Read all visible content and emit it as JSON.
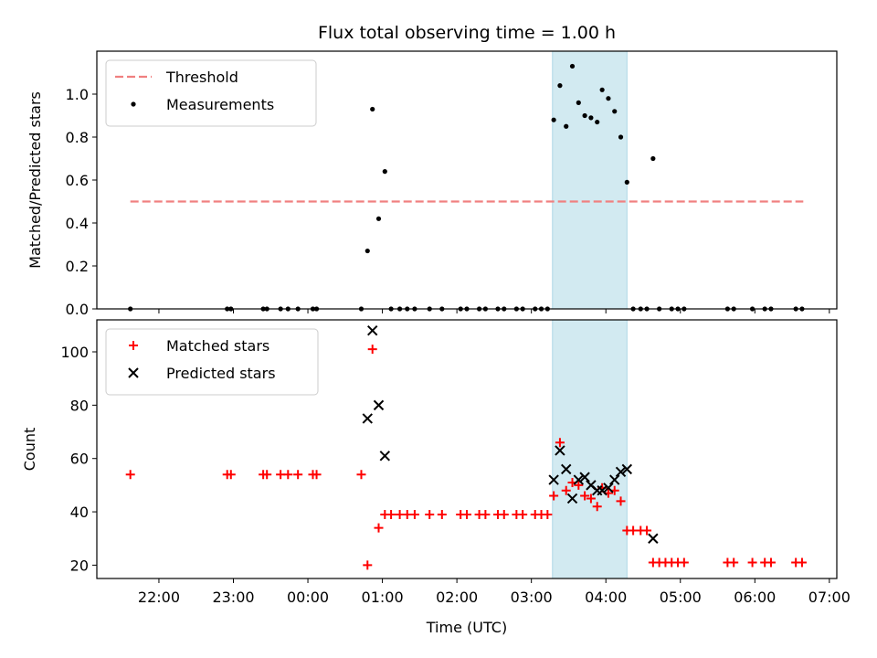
{
  "chart_data": [
    {
      "type": "scatter",
      "title": "Flux total observing time = 1.00 h",
      "ylabel": "Matched/Predicted stars",
      "xlabel": "",
      "ylim": [
        0,
        1.2
      ],
      "yticks": [
        0.0,
        0.2,
        0.4,
        0.6,
        0.8,
        1.0
      ],
      "ytick_labels": [
        "0.0",
        "0.2",
        "0.4",
        "0.6",
        "0.8",
        "1.0"
      ],
      "grid": false,
      "legend_position": "top-left",
      "highlight_span": [
        "03:17",
        "04:17"
      ],
      "highlight_color": "#add8e6",
      "threshold": {
        "name": "Threshold",
        "value": 0.5,
        "x_range": [
          "21:37",
          "06:39"
        ],
        "color": "#f08080",
        "style": "dashed"
      },
      "series": [
        {
          "name": "Measurements",
          "color": "#000000",
          "marker": "dot",
          "points": [
            [
              "21:37",
              0.0
            ],
            [
              "22:55",
              0.0
            ],
            [
              "22:58",
              0.0
            ],
            [
              "23:24",
              0.0
            ],
            [
              "23:27",
              0.0
            ],
            [
              "23:38",
              0.0
            ],
            [
              "23:44",
              0.0
            ],
            [
              "23:52",
              0.0
            ],
            [
              "00:04",
              0.0
            ],
            [
              "00:07",
              0.0
            ],
            [
              "00:43",
              0.0
            ],
            [
              "00:48",
              0.27
            ],
            [
              "00:52",
              0.93
            ],
            [
              "00:57",
              0.42
            ],
            [
              "01:02",
              0.64
            ],
            [
              "01:07",
              0.0
            ],
            [
              "01:14",
              0.0
            ],
            [
              "01:20",
              0.0
            ],
            [
              "01:26",
              0.0
            ],
            [
              "01:38",
              0.0
            ],
            [
              "01:48",
              0.0
            ],
            [
              "02:03",
              0.0
            ],
            [
              "02:08",
              0.0
            ],
            [
              "02:18",
              0.0
            ],
            [
              "02:23",
              0.0
            ],
            [
              "02:33",
              0.0
            ],
            [
              "02:38",
              0.0
            ],
            [
              "02:48",
              0.0
            ],
            [
              "02:53",
              0.0
            ],
            [
              "03:03",
              0.0
            ],
            [
              "03:08",
              0.0
            ],
            [
              "03:13",
              0.0
            ],
            [
              "03:18",
              0.88
            ],
            [
              "03:23",
              1.04
            ],
            [
              "03:28",
              0.85
            ],
            [
              "03:33",
              1.13
            ],
            [
              "03:38",
              0.96
            ],
            [
              "03:43",
              0.9
            ],
            [
              "03:48",
              0.89
            ],
            [
              "03:53",
              0.87
            ],
            [
              "03:57",
              1.02
            ],
            [
              "04:02",
              0.98
            ],
            [
              "04:07",
              0.92
            ],
            [
              "04:12",
              0.8
            ],
            [
              "04:17",
              0.59
            ],
            [
              "04:22",
              0.0
            ],
            [
              "04:28",
              0.0
            ],
            [
              "04:33",
              0.0
            ],
            [
              "04:38",
              0.7
            ],
            [
              "04:43",
              0.0
            ],
            [
              "04:53",
              0.0
            ],
            [
              "04:58",
              0.0
            ],
            [
              "05:03",
              0.0
            ],
            [
              "05:38",
              0.0
            ],
            [
              "05:43",
              0.0
            ],
            [
              "05:58",
              0.0
            ],
            [
              "06:08",
              0.0
            ],
            [
              "06:13",
              0.0
            ],
            [
              "06:33",
              0.0
            ],
            [
              "06:38",
              0.0
            ]
          ]
        }
      ]
    },
    {
      "type": "scatter",
      "title": "",
      "ylabel": "Count",
      "xlabel": "Time (UTC)",
      "ylim": [
        15,
        112
      ],
      "yticks": [
        20,
        40,
        60,
        80,
        100
      ],
      "ytick_labels": [
        "20",
        "40",
        "60",
        "80",
        "100"
      ],
      "x_range": [
        "21:10",
        "07:06"
      ],
      "xticks": [
        "22:00",
        "23:00",
        "00:00",
        "01:00",
        "02:00",
        "03:00",
        "04:00",
        "05:00",
        "06:00",
        "07:00"
      ],
      "xtick_labels": [
        "22:00",
        "23:00",
        "00:00",
        "01:00",
        "02:00",
        "03:00",
        "04:00",
        "05:00",
        "06:00",
        "07:00"
      ],
      "grid": false,
      "legend_position": "top-left",
      "highlight_span": [
        "03:17",
        "04:17"
      ],
      "highlight_color": "#add8e6",
      "series": [
        {
          "name": "Matched stars",
          "color": "#ff0000",
          "marker": "plus",
          "points": [
            [
              "21:37",
              54
            ],
            [
              "22:55",
              54
            ],
            [
              "22:58",
              54
            ],
            [
              "23:24",
              54
            ],
            [
              "23:27",
              54
            ],
            [
              "23:38",
              54
            ],
            [
              "23:44",
              54
            ],
            [
              "23:52",
              54
            ],
            [
              "00:04",
              54
            ],
            [
              "00:07",
              54
            ],
            [
              "00:43",
              54
            ],
            [
              "00:48",
              20
            ],
            [
              "00:52",
              101
            ],
            [
              "00:57",
              34
            ],
            [
              "01:02",
              39
            ],
            [
              "01:07",
              39
            ],
            [
              "01:14",
              39
            ],
            [
              "01:20",
              39
            ],
            [
              "01:26",
              39
            ],
            [
              "01:38",
              39
            ],
            [
              "01:48",
              39
            ],
            [
              "02:03",
              39
            ],
            [
              "02:08",
              39
            ],
            [
              "02:18",
              39
            ],
            [
              "02:23",
              39
            ],
            [
              "02:33",
              39
            ],
            [
              "02:38",
              39
            ],
            [
              "02:48",
              39
            ],
            [
              "02:53",
              39
            ],
            [
              "03:03",
              39
            ],
            [
              "03:08",
              39
            ],
            [
              "03:13",
              39
            ],
            [
              "03:18",
              46
            ],
            [
              "03:23",
              66
            ],
            [
              "03:28",
              48
            ],
            [
              "03:33",
              51
            ],
            [
              "03:38",
              50
            ],
            [
              "03:43",
              46
            ],
            [
              "03:48",
              45
            ],
            [
              "03:53",
              42
            ],
            [
              "03:57",
              49
            ],
            [
              "04:02",
              47
            ],
            [
              "04:07",
              48
            ],
            [
              "04:12",
              44
            ],
            [
              "04:17",
              33
            ],
            [
              "04:22",
              33
            ],
            [
              "04:28",
              33
            ],
            [
              "04:33",
              33
            ],
            [
              "04:38",
              21
            ],
            [
              "04:43",
              21
            ],
            [
              "04:48",
              21
            ],
            [
              "04:53",
              21
            ],
            [
              "04:58",
              21
            ],
            [
              "05:03",
              21
            ],
            [
              "05:38",
              21
            ],
            [
              "05:43",
              21
            ],
            [
              "05:58",
              21
            ],
            [
              "06:08",
              21
            ],
            [
              "06:13",
              21
            ],
            [
              "06:33",
              21
            ],
            [
              "06:38",
              21
            ]
          ]
        },
        {
          "name": "Predicted stars",
          "color": "#000000",
          "marker": "x",
          "points": [
            [
              "00:48",
              75
            ],
            [
              "00:52",
              108
            ],
            [
              "00:57",
              80
            ],
            [
              "01:02",
              61
            ],
            [
              "03:18",
              52
            ],
            [
              "03:23",
              63
            ],
            [
              "03:28",
              56
            ],
            [
              "03:33",
              45
            ],
            [
              "03:38",
              52
            ],
            [
              "03:43",
              53
            ],
            [
              "03:48",
              50
            ],
            [
              "03:53",
              48
            ],
            [
              "03:57",
              48
            ],
            [
              "04:02",
              49
            ],
            [
              "04:07",
              52
            ],
            [
              "04:12",
              55
            ],
            [
              "04:17",
              56
            ],
            [
              "04:38",
              30
            ]
          ]
        }
      ]
    }
  ]
}
